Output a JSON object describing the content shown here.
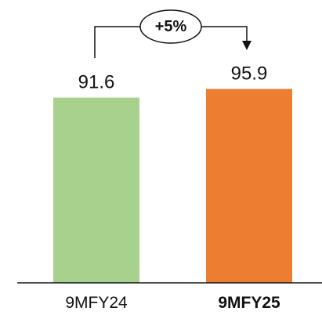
{
  "chart_data": {
    "type": "bar",
    "categories": [
      "9MFY24",
      "9MFY25"
    ],
    "values": [
      91.6,
      95.9
    ],
    "value_labels": [
      "91.6",
      "95.9"
    ],
    "category_bold": [
      false,
      true
    ],
    "colors": [
      "#a9d18e",
      "#ed7d31"
    ],
    "ylim": [
      0,
      100
    ],
    "grid": false,
    "legend": "none",
    "annotation": {
      "text": "+5%",
      "from": "9MFY24",
      "to": "9MFY25",
      "style": "bracket-arrow"
    },
    "title": "",
    "xlabel": "",
    "ylabel": ""
  }
}
